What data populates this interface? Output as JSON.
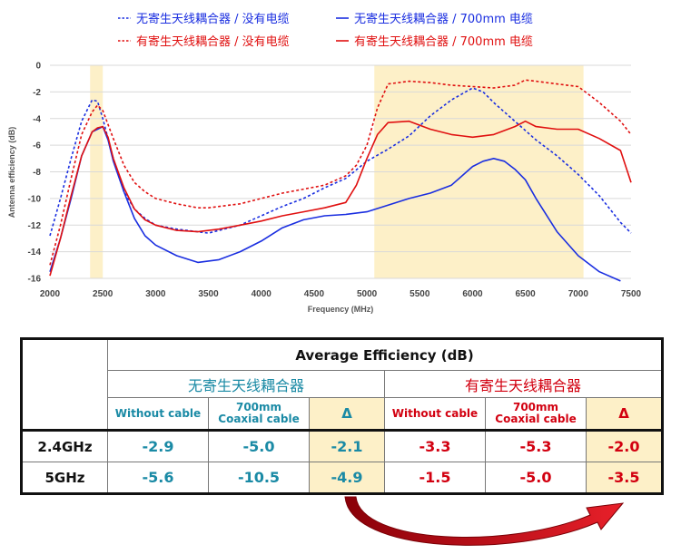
{
  "chart_data": {
    "type": "line",
    "xlabel": "Frequency (MHz)",
    "ylabel": "Antenna efficiency (dB)",
    "xlim": [
      2000,
      7500
    ],
    "ylim": [
      -16,
      0
    ],
    "xticks": [
      "2000",
      "2500",
      "3000",
      "3500",
      "4000",
      "4500",
      "5000",
      "5500",
      "6000",
      "6500",
      "7000",
      "7500"
    ],
    "yticks": [
      "0",
      "-2",
      "-4",
      "-6",
      "-8",
      "-10",
      "-12",
      "-14",
      "-16"
    ],
    "bands": [
      [
        2380,
        2500
      ],
      [
        5070,
        7050
      ]
    ],
    "legend": [
      {
        "name": "无寄生天线耦合器 / 没有电缆",
        "color": "#1a2ee0",
        "dash": true
      },
      {
        "name": "无寄生天线耦合器 / 700mm 电缆",
        "color": "#1a2ee0",
        "dash": false
      },
      {
        "name": "有寄生天线耦合器 / 没有电缆",
        "color": "#e01010",
        "dash": true
      },
      {
        "name": "有寄生天线耦合器 / 700mm 电缆",
        "color": "#e01010",
        "dash": false
      }
    ],
    "series": [
      {
        "name": "无寄生天线耦合器 / 没有电缆",
        "color": "#1a2ee0",
        "dash": true,
        "x": [
          2000,
          2100,
          2200,
          2300,
          2400,
          2450,
          2500,
          2600,
          2700,
          2800,
          2900,
          3000,
          3200,
          3400,
          3500,
          3600,
          3800,
          4000,
          4200,
          4400,
          4500,
          4600,
          4800,
          5000,
          5200,
          5400,
          5600,
          5800,
          6000,
          6100,
          6200,
          6400,
          6600,
          6800,
          7000,
          7200,
          7400,
          7500
        ],
        "y": [
          -12.8,
          -10,
          -7,
          -4.2,
          -2.6,
          -2.7,
          -4,
          -7,
          -9.5,
          -10.8,
          -11.5,
          -12,
          -12.3,
          -12.5,
          -12.6,
          -12.4,
          -12.0,
          -11.3,
          -10.6,
          -10.0,
          -9.6,
          -9.2,
          -8.5,
          -7.2,
          -6.3,
          -5.3,
          -3.8,
          -2.6,
          -1.7,
          -2.0,
          -2.8,
          -4.2,
          -5.6,
          -6.8,
          -8.2,
          -9.8,
          -11.8,
          -12.6
        ]
      },
      {
        "name": "无寄生天线耦合器 / 700mm 电缆",
        "color": "#1a2ee0",
        "dash": false,
        "x": [
          2000,
          2100,
          2200,
          2300,
          2400,
          2450,
          2500,
          2550,
          2600,
          2700,
          2800,
          2900,
          3000,
          3200,
          3400,
          3600,
          3800,
          4000,
          4200,
          4400,
          4600,
          4800,
          5000,
          5200,
          5400,
          5600,
          5800,
          6000,
          6100,
          6200,
          6300,
          6400,
          6500,
          6600,
          6800,
          7000,
          7200,
          7400
        ],
        "y": [
          -15.5,
          -13,
          -10,
          -6.8,
          -5.0,
          -4.8,
          -4.6,
          -5.6,
          -7.2,
          -9.5,
          -11.5,
          -12.8,
          -13.5,
          -14.3,
          -14.8,
          -14.6,
          -14.0,
          -13.2,
          -12.2,
          -11.6,
          -11.3,
          -11.2,
          -11.0,
          -10.5,
          -10.0,
          -9.6,
          -9.0,
          -7.6,
          -7.2,
          -7.0,
          -7.2,
          -7.8,
          -8.6,
          -10.0,
          -12.5,
          -14.3,
          -15.5,
          -16.2
        ]
      },
      {
        "name": "有寄生天线耦合器 / 没有电缆",
        "color": "#e01010",
        "dash": true,
        "x": [
          2000,
          2100,
          2200,
          2300,
          2400,
          2450,
          2500,
          2600,
          2700,
          2800,
          2900,
          3000,
          3200,
          3400,
          3500,
          3600,
          3800,
          4000,
          4200,
          4400,
          4600,
          4800,
          4900,
          5000,
          5100,
          5200,
          5400,
          5600,
          5800,
          6000,
          6200,
          6400,
          6500,
          6600,
          6800,
          7000,
          7200,
          7400,
          7500
        ],
        "y": [
          -15,
          -12,
          -8.5,
          -5.2,
          -3.5,
          -3.0,
          -3.4,
          -5.5,
          -7.5,
          -8.8,
          -9.5,
          -10.0,
          -10.4,
          -10.7,
          -10.7,
          -10.6,
          -10.4,
          -10.0,
          -9.6,
          -9.3,
          -9.0,
          -8.3,
          -7.5,
          -6.0,
          -3.2,
          -1.4,
          -1.2,
          -1.3,
          -1.5,
          -1.6,
          -1.7,
          -1.5,
          -1.1,
          -1.2,
          -1.4,
          -1.6,
          -2.8,
          -4.2,
          -5.2
        ]
      },
      {
        "name": "有寄生天线耦合器 / 700mm 电缆",
        "color": "#e01010",
        "dash": false,
        "x": [
          2000,
          2100,
          2200,
          2300,
          2400,
          2450,
          2500,
          2550,
          2600,
          2700,
          2800,
          2900,
          3000,
          3200,
          3400,
          3600,
          3800,
          4000,
          4200,
          4400,
          4600,
          4800,
          4900,
          5000,
          5100,
          5200,
          5400,
          5600,
          5800,
          6000,
          6200,
          6400,
          6500,
          6600,
          6800,
          7000,
          7200,
          7400,
          7500
        ],
        "y": [
          -15.8,
          -13,
          -9.8,
          -6.8,
          -5.0,
          -4.7,
          -4.6,
          -5.4,
          -7.0,
          -9.2,
          -10.8,
          -11.6,
          -12.0,
          -12.4,
          -12.5,
          -12.3,
          -12.0,
          -11.7,
          -11.3,
          -11.0,
          -10.7,
          -10.3,
          -9.0,
          -7.0,
          -5.2,
          -4.3,
          -4.2,
          -4.8,
          -5.2,
          -5.4,
          -5.2,
          -4.6,
          -4.2,
          -4.6,
          -4.8,
          -4.8,
          -5.5,
          -6.4,
          -8.8
        ]
      }
    ]
  },
  "table": {
    "header": "Average Efficiency (dB)",
    "group1": "无寄生天线耦合器",
    "group2": "有寄生天线耦合器",
    "col_without": "Without cable",
    "col_700_line1": "700mm",
    "col_700_line2": "Coaxial cable",
    "col_delta": "Δ",
    "rows": [
      {
        "label": "2.4GHz",
        "values": [
          "-2.9",
          "-5.0",
          "-2.1",
          "-3.3",
          "-5.3",
          "-2.0"
        ]
      },
      {
        "label": "5GHz",
        "values": [
          "-5.6",
          "-10.5",
          "-4.9",
          "-1.5",
          "-5.0",
          "-3.5"
        ]
      }
    ]
  },
  "colors": {
    "blue": "#1a2ee0",
    "red": "#e01010",
    "teal": "#1a8aa5",
    "band": "#fdf0c8"
  }
}
